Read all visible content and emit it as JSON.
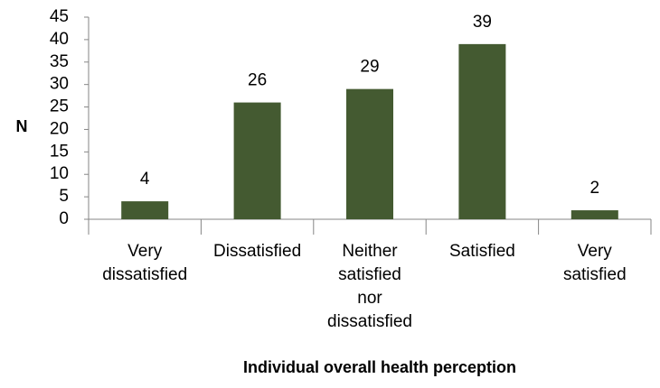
{
  "chart_data": {
    "type": "bar",
    "categories": [
      [
        "Very",
        "dissatisfied"
      ],
      [
        "Dissatisfied"
      ],
      [
        "Neither",
        "satisfied",
        "nor",
        "dissatisfied"
      ],
      [
        "Satisfied"
      ],
      [
        "Very",
        "satisfied"
      ]
    ],
    "values": [
      4,
      26,
      29,
      39,
      2
    ],
    "data_labels": [
      "4",
      "26",
      "29",
      "39",
      "2"
    ],
    "xlabel": "Individual overall health perception",
    "ylabel": "N",
    "ylim": [
      0,
      45
    ],
    "yticks": [
      0,
      5,
      10,
      15,
      20,
      25,
      30,
      35,
      40,
      45
    ],
    "grid": false,
    "legend": "none",
    "bar_color": "#445a31"
  }
}
